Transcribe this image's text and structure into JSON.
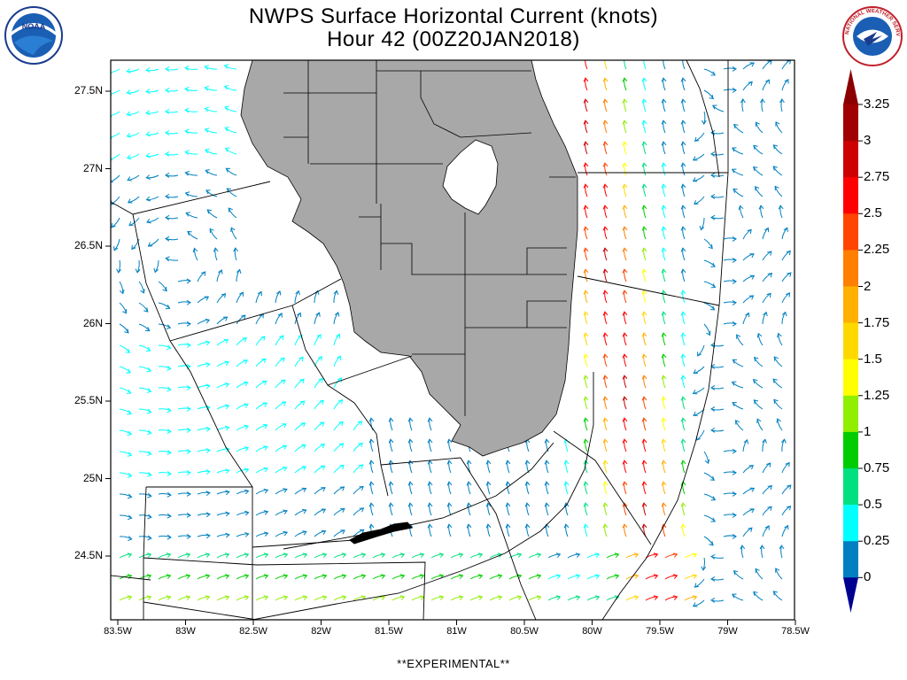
{
  "header": {
    "title_line1": "NWPS Surface Horizontal Current (knots)",
    "title_line2": "Hour 42 (00Z20JAN2018)"
  },
  "logos": {
    "left": {
      "icon": "noaa-logo-icon",
      "text": "NOAA"
    },
    "right": {
      "icon": "nws-logo-icon",
      "text": "NATIONAL WEATHER SERVICE"
    }
  },
  "map": {
    "y_ticks": [
      "27.5N",
      "27N",
      "26.5N",
      "26N",
      "25.5N",
      "25N",
      "24.5N"
    ],
    "x_ticks": [
      "83.5W",
      "83W",
      "82.5W",
      "82W",
      "81.5W",
      "81W",
      "80.5W",
      "80W",
      "79.5W",
      "79W",
      "78.5W"
    ],
    "land_color": "#a8a8a8",
    "water_color": "#ffffff"
  },
  "colorbar": {
    "labels": [
      "3.25",
      "3",
      "2.75",
      "2.5",
      "2.25",
      "2",
      "1.75",
      "1.5",
      "1.25",
      "1",
      "0.75",
      "0.5",
      "0.25",
      "0"
    ],
    "colors": [
      "#8b0000",
      "#a00000",
      "#cc0000",
      "#ff0000",
      "#ff4500",
      "#ff7f00",
      "#ffb000",
      "#ffd800",
      "#ffff00",
      "#90ee00",
      "#00cc00",
      "#00e07f",
      "#00ffff",
      "#0080c0",
      "#000090"
    ]
  },
  "footer": {
    "text": "**EXPERIMENTAL**"
  }
}
